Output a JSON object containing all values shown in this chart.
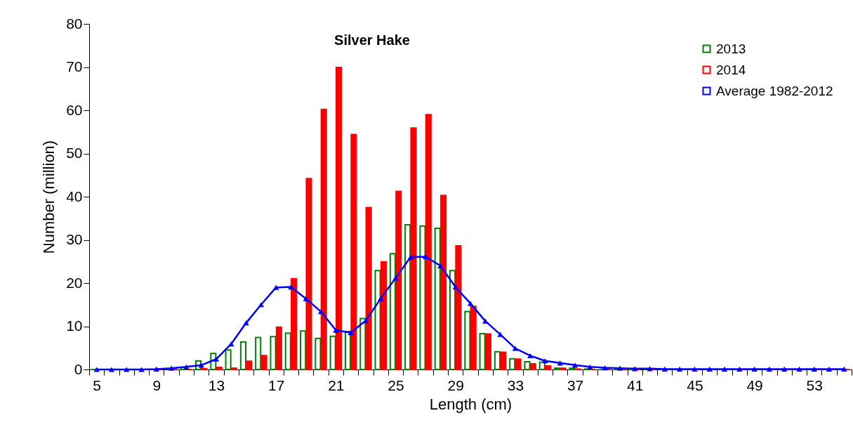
{
  "chart_data": {
    "type": "bar",
    "title": "Silver Hake",
    "xlabel": "Length (cm)",
    "ylabel": "Number (million)",
    "categories": [
      "5",
      null,
      null,
      null,
      "9",
      null,
      null,
      null,
      "13",
      null,
      null,
      null,
      "17",
      null,
      null,
      null,
      "21",
      null,
      null,
      null,
      "25",
      null,
      null,
      null,
      "29",
      null,
      null,
      null,
      "33",
      null,
      null,
      null,
      "37",
      null,
      null,
      null,
      "41",
      null,
      null,
      null,
      "45",
      null,
      null,
      null,
      "49",
      null,
      null,
      null,
      "53",
      null,
      null
    ],
    "series": [
      {
        "name": "2013",
        "color": "#008000",
        "values": [
          0,
          0,
          0,
          0,
          0,
          null,
          0.5,
          2,
          3.7,
          4.5,
          6.4,
          7.4,
          7.6,
          8.4,
          8.9,
          7.2,
          7.7,
          8.8,
          11.8,
          22.9,
          26.8,
          33.5,
          33.2,
          32.7,
          22.9,
          13.4,
          8.3,
          4.1,
          2.5,
          1.8,
          1.7,
          0.3,
          0.3,
          0.1,
          0,
          0,
          0,
          0,
          0,
          0,
          0,
          0,
          0,
          0,
          0,
          0,
          0,
          0,
          0,
          0,
          0
        ]
      },
      {
        "name": "2014",
        "color": "#ff0000",
        "values": [
          0,
          0,
          0,
          0,
          0,
          0,
          0,
          0.2,
          0.5,
          0.3,
          1.9,
          3.2,
          9.8,
          21,
          44.2,
          60.2,
          69.9,
          54.4,
          37.5,
          24.9,
          41.2,
          55.9,
          59,
          40.3,
          28.6,
          14.6,
          8.2,
          4,
          2.4,
          1.3,
          0.8,
          0.3,
          0.1,
          0,
          0,
          0,
          0,
          0,
          0,
          0,
          0,
          0,
          0,
          0,
          0,
          0,
          0,
          0,
          0,
          0,
          0
        ]
      },
      {
        "name": "Average 1982-2012",
        "type": "line",
        "color": "#0000ff",
        "values": [
          0,
          0,
          0,
          0,
          0.1,
          0.3,
          0.6,
          1,
          2.4,
          5.9,
          10.8,
          15,
          19,
          19.1,
          16.4,
          13.4,
          9.1,
          8.5,
          11.3,
          16.4,
          21.2,
          26,
          26.1,
          24,
          19.1,
          15.3,
          11.2,
          8.1,
          4.9,
          3.2,
          2,
          1.5,
          1,
          0.6,
          0.4,
          0.3,
          0.2,
          0.2,
          0.1,
          0.1,
          0.1,
          0.1,
          0.1,
          0.1,
          0.1,
          0.1,
          0.1,
          0.1,
          0.1,
          0.1,
          0.1
        ]
      }
    ],
    "ylim": [
      0,
      80
    ],
    "yticks": [
      0,
      10,
      20,
      30,
      40,
      50,
      60,
      70,
      80
    ],
    "grid": false,
    "legend": "top right",
    "marker": "triangle",
    "line_style": "solid"
  }
}
